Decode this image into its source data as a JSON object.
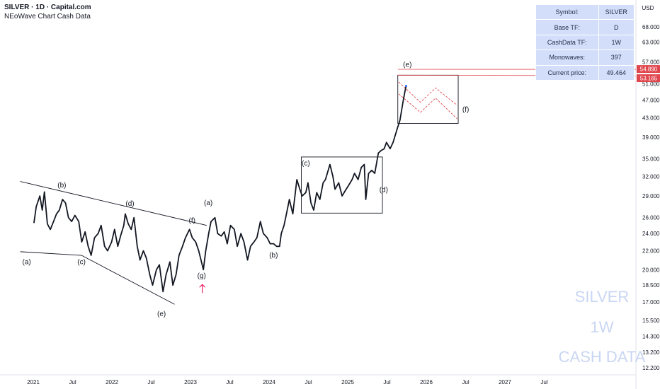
{
  "header": {
    "title": "SILVER · 1D · Capital.com",
    "subtitle": "NEoWave Chart Cash Data"
  },
  "info_table": [
    {
      "key": "Symbol:",
      "value": "SILVER"
    },
    {
      "key": "Base TF:",
      "value": "D"
    },
    {
      "key": "CashData TF:",
      "value": "1W"
    },
    {
      "key": "Monowaves:",
      "value": "397"
    },
    {
      "key": "Current price:",
      "value": "49.464"
    }
  ],
  "watermark": [
    "SILVER",
    "1W",
    "CASH DATA"
  ],
  "colors": {
    "price_line": "#131722",
    "channel_red": "#e0464d",
    "arrow_pink": "#e91e63",
    "table_bg": "#d3dffa",
    "watermark": "#c9d6f3"
  },
  "chart_data": {
    "type": "line",
    "currency": "USD",
    "y_scale": "log",
    "yticks": [
      12.2,
      13.2,
      14.3,
      15.5,
      17.0,
      18.5,
      20.0,
      22.0,
      24.0,
      26.0,
      29.0,
      32.0,
      35.0,
      39.0,
      43.0,
      47.0,
      51.0,
      57.0,
      63.0,
      68.0
    ],
    "ytick_labels": [
      "12.200",
      "13.200",
      "14.300",
      "15.500",
      "17.000",
      "18.500",
      "20.000",
      "22.000",
      "24.000",
      "26.000",
      "29.000",
      "32.000",
      "35.000",
      "39.000",
      "43.000",
      "47.000",
      "51.000",
      "57.000",
      "63.000",
      "68.000"
    ],
    "x_ticks": [
      "2021",
      "Jul",
      "2022",
      "Jul",
      "2023",
      "Jul",
      "2024",
      "Jul",
      "2025",
      "Jul",
      "2026",
      "Jul",
      "2027",
      "Jul"
    ],
    "price_tags": [
      {
        "value": "54.890",
        "price": 54.89
      },
      {
        "value": "53.165",
        "price": 53.165
      }
    ],
    "series": [
      {
        "points": [
          [
            "2021-01-04",
            25.3
          ],
          [
            "2021-01-15",
            27.5
          ],
          [
            "2021-02-01",
            29.0
          ],
          [
            "2021-02-12",
            27.0
          ],
          [
            "2021-02-22",
            29.6
          ],
          [
            "2021-03-08",
            25.2
          ],
          [
            "2021-03-22",
            24.5
          ],
          [
            "2021-04-06",
            25.5
          ],
          [
            "2021-04-20",
            26.5
          ],
          [
            "2021-05-03",
            27.0
          ],
          [
            "2021-05-18",
            28.5
          ],
          [
            "2021-06-01",
            28.0
          ],
          [
            "2021-06-15",
            26.0
          ],
          [
            "2021-06-30",
            25.5
          ],
          [
            "2021-07-15",
            26.3
          ],
          [
            "2021-08-02",
            25.5
          ],
          [
            "2021-08-16",
            23.0
          ],
          [
            "2021-09-01",
            24.2
          ],
          [
            "2021-09-15",
            22.5
          ],
          [
            "2021-09-29",
            21.5
          ],
          [
            "2021-10-15",
            23.5
          ],
          [
            "2021-11-01",
            24.0
          ],
          [
            "2021-11-15",
            25.0
          ],
          [
            "2021-12-01",
            22.5
          ],
          [
            "2021-12-15",
            22.0
          ],
          [
            "2022-01-03",
            23.0
          ],
          [
            "2022-01-17",
            24.5
          ],
          [
            "2022-02-01",
            22.5
          ],
          [
            "2022-02-15",
            23.8
          ],
          [
            "2022-03-01",
            25.0
          ],
          [
            "2022-03-08",
            26.5
          ],
          [
            "2022-03-22",
            25.2
          ],
          [
            "2022-04-05",
            24.5
          ],
          [
            "2022-04-18",
            26.0
          ],
          [
            "2022-05-03",
            22.5
          ],
          [
            "2022-05-16",
            21.0
          ],
          [
            "2022-06-01",
            22.0
          ],
          [
            "2022-06-15",
            21.2
          ],
          [
            "2022-07-01",
            19.5
          ],
          [
            "2022-07-14",
            18.5
          ],
          [
            "2022-08-01",
            20.0
          ],
          [
            "2022-08-15",
            20.5
          ],
          [
            "2022-09-01",
            17.9
          ],
          [
            "2022-09-15",
            19.5
          ],
          [
            "2022-10-03",
            20.8
          ],
          [
            "2022-10-17",
            18.5
          ],
          [
            "2022-11-01",
            19.5
          ],
          [
            "2022-11-15",
            21.5
          ],
          [
            "2022-12-01",
            22.5
          ],
          [
            "2022-12-15",
            23.5
          ],
          [
            "2023-01-03",
            24.5
          ],
          [
            "2023-01-16",
            23.5
          ],
          [
            "2023-02-01",
            23.0
          ],
          [
            "2023-02-15",
            22.0
          ],
          [
            "2023-02-28",
            20.8
          ],
          [
            "2023-03-09",
            20.0
          ],
          [
            "2023-03-20",
            22.0
          ],
          [
            "2023-04-03",
            24.0
          ],
          [
            "2023-04-14",
            25.5
          ],
          [
            "2023-05-02",
            26.0
          ],
          [
            "2023-05-15",
            24.0
          ],
          [
            "2023-06-01",
            23.7
          ],
          [
            "2023-06-15",
            24.2
          ],
          [
            "2023-06-29",
            22.8
          ],
          [
            "2023-07-14",
            25.0
          ],
          [
            "2023-08-01",
            24.5
          ],
          [
            "2023-08-15",
            22.5
          ],
          [
            "2023-09-01",
            24.0
          ],
          [
            "2023-09-15",
            23.0
          ],
          [
            "2023-10-02",
            21.0
          ],
          [
            "2023-10-16",
            22.5
          ],
          [
            "2023-11-01",
            23.0
          ],
          [
            "2023-11-15",
            23.5
          ],
          [
            "2023-12-01",
            25.5
          ],
          [
            "2023-12-15",
            24.0
          ],
          [
            "2024-01-02",
            23.5
          ],
          [
            "2024-01-16",
            22.8
          ],
          [
            "2024-02-01",
            22.8
          ],
          [
            "2024-02-15",
            22.5
          ],
          [
            "2024-02-29",
            22.5
          ],
          [
            "2024-03-08",
            24.0
          ],
          [
            "2024-03-21",
            25.0
          ],
          [
            "2024-04-05",
            27.0
          ],
          [
            "2024-04-15",
            28.5
          ],
          [
            "2024-05-01",
            26.5
          ],
          [
            "2024-05-20",
            31.5
          ],
          [
            "2024-06-03",
            30.0
          ],
          [
            "2024-06-14",
            29.0
          ],
          [
            "2024-07-01",
            29.5
          ],
          [
            "2024-07-11",
            31.0
          ],
          [
            "2024-07-25",
            28.0
          ],
          [
            "2024-08-07",
            27.0
          ],
          [
            "2024-08-21",
            29.5
          ],
          [
            "2024-09-05",
            28.5
          ],
          [
            "2024-09-20",
            31.0
          ],
          [
            "2024-10-01",
            31.5
          ],
          [
            "2024-10-22",
            34.0
          ],
          [
            "2024-11-05",
            32.0
          ],
          [
            "2024-11-15",
            30.0
          ],
          [
            "2024-12-02",
            31.0
          ],
          [
            "2024-12-18",
            29.0
          ],
          [
            "2025-01-02",
            29.8
          ],
          [
            "2025-01-16",
            30.5
          ],
          [
            "2025-02-03",
            31.5
          ],
          [
            "2025-02-14",
            32.5
          ],
          [
            "2025-03-03",
            31.5
          ],
          [
            "2025-03-18",
            33.5
          ],
          [
            "2025-04-01",
            34.0
          ],
          [
            "2025-04-08",
            28.5
          ],
          [
            "2025-04-21",
            32.5
          ],
          [
            "2025-05-06",
            33.0
          ],
          [
            "2025-05-20",
            32.5
          ],
          [
            "2025-06-06",
            36.0
          ],
          [
            "2025-06-20",
            36.5
          ],
          [
            "2025-07-03",
            36.8
          ],
          [
            "2025-07-14",
            38.0
          ],
          [
            "2025-07-31",
            36.8
          ],
          [
            "2025-08-14",
            38.0
          ],
          [
            "2025-09-01",
            40.5
          ],
          [
            "2025-09-15",
            42.5
          ],
          [
            "2025-09-29",
            46.5
          ],
          [
            "2025-10-08",
            49.0
          ],
          [
            "2025-10-14",
            50.5
          ]
        ]
      }
    ],
    "annotations": [
      {
        "text": "(a)",
        "date": "2020-12-01",
        "price": 20.8
      },
      {
        "text": "(b)",
        "date": "2021-05-15",
        "price": 30.6
      },
      {
        "text": "(c)",
        "date": "2021-08-15",
        "price": 20.8
      },
      {
        "text": "(d)",
        "date": "2022-03-30",
        "price": 27.9
      },
      {
        "text": "(e)",
        "date": "2022-08-25",
        "price": 16.0
      },
      {
        "text": "(f)",
        "date": "2023-01-15",
        "price": 25.6
      },
      {
        "text": "(g)",
        "date": "2023-03-01",
        "price": 19.4
      },
      {
        "text": "(a)",
        "date": "2023-04-01",
        "price": 28.0
      },
      {
        "text": "(b)",
        "date": "2024-02-01",
        "price": 21.5
      },
      {
        "text": "(c)",
        "date": "2024-07-01",
        "price": 34.2
      },
      {
        "text": "(d)",
        "date": "2025-07-01",
        "price": 29.9
      },
      {
        "text": "(e)",
        "date": "2025-10-20",
        "price": 56.2
      },
      {
        "text": "(f)",
        "date": "2026-07-20",
        "price": 44.8
      }
    ]
  }
}
